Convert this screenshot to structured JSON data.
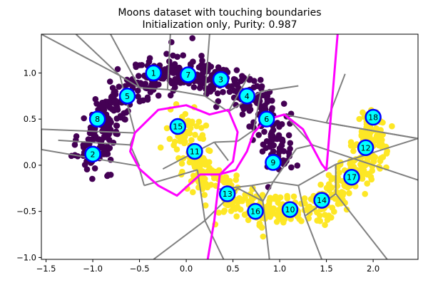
{
  "chart_data": {
    "type": "scatter",
    "title": "Moons dataset with touching boundaries",
    "subtitle": "Initialization only, Purity: 0.987",
    "xlim": [
      -1.55,
      2.48
    ],
    "ylim": [
      -1.02,
      1.42
    ],
    "xticks": [
      -1.5,
      -1.0,
      -0.5,
      0.0,
      0.5,
      1.0,
      1.5,
      2.0
    ],
    "yticks": [
      -1.0,
      -0.5,
      0.0,
      0.5,
      1.0
    ],
    "xtick_labels": [
      "−1.5",
      "−1.0",
      "−0.5",
      "0.0",
      "0.5",
      "1.0",
      "1.5",
      "2.0"
    ],
    "ytick_labels": [
      "−1.0",
      "−0.5",
      "0.0",
      "0.5",
      "1.0"
    ],
    "grid": false,
    "class_colors": {
      "class_0": "#440154",
      "class_1": "#fde725"
    },
    "node_fill": "#00ffff",
    "node_edge": "#0000ff",
    "voronoi_color": "#808080",
    "class_boundary_color": "#ff00ff",
    "nodes": [
      {
        "label": "1",
        "x": -0.35,
        "y": 1.0
      },
      {
        "label": "2",
        "x": -1.0,
        "y": 0.12
      },
      {
        "label": "3",
        "x": 0.37,
        "y": 0.93
      },
      {
        "label": "4",
        "x": 0.65,
        "y": 0.75
      },
      {
        "label": "5",
        "x": -0.63,
        "y": 0.75
      },
      {
        "label": "6",
        "x": 0.86,
        "y": 0.5
      },
      {
        "label": "7",
        "x": 0.02,
        "y": 0.98
      },
      {
        "label": "8",
        "x": -0.95,
        "y": 0.5
      },
      {
        "label": "9",
        "x": 0.93,
        "y": 0.03
      },
      {
        "label": "10",
        "x": 1.11,
        "y": -0.48
      },
      {
        "label": "11",
        "x": 0.09,
        "y": 0.15
      },
      {
        "label": "12",
        "x": 1.92,
        "y": 0.19
      },
      {
        "label": "13",
        "x": 0.44,
        "y": -0.31
      },
      {
        "label": "14",
        "x": 1.45,
        "y": -0.38
      },
      {
        "label": "15",
        "x": -0.09,
        "y": 0.42
      },
      {
        "label": "16",
        "x": 0.74,
        "y": -0.5
      },
      {
        "label": "17",
        "x": 1.77,
        "y": -0.13
      },
      {
        "label": "18",
        "x": 2.0,
        "y": 0.52
      }
    ],
    "class_boundary": [
      [
        0.23,
        -1.02
      ],
      [
        0.3,
        -0.6
      ],
      [
        0.34,
        -0.26
      ],
      [
        0.36,
        -0.1
      ],
      [
        0.5,
        0.04
      ],
      [
        0.55,
        0.36
      ],
      [
        0.45,
        0.6
      ],
      [
        0.25,
        0.55
      ],
      [
        0.0,
        0.65
      ],
      [
        -0.3,
        0.6
      ],
      [
        -0.55,
        0.35
      ],
      [
        -0.6,
        0.15
      ],
      [
        -0.5,
        -0.04
      ],
      [
        -0.3,
        -0.22
      ],
      [
        -0.1,
        -0.33
      ],
      [
        0.15,
        -0.1
      ],
      [
        0.35,
        -0.1
      ],
      [
        0.53,
        -0.05
      ],
      [
        0.65,
        0.15
      ],
      [
        0.72,
        0.35
      ],
      [
        0.85,
        0.49
      ],
      [
        1.05,
        0.55
      ],
      [
        1.25,
        0.39
      ],
      [
        1.45,
        0.01
      ],
      [
        1.5,
        -0.05
      ],
      [
        1.6,
        1.18
      ],
      [
        1.62,
        1.42
      ]
    ],
    "voronoi_edges": [
      [
        [
          -1.18,
          1.42
        ],
        [
          -0.71,
          0.97
        ]
      ],
      [
        [
          -0.71,
          0.97
        ],
        [
          -0.5,
          0.84
        ]
      ],
      [
        [
          -0.5,
          0.84
        ],
        [
          -0.2,
          0.82
        ]
      ],
      [
        [
          -0.2,
          0.82
        ],
        [
          0.2,
          0.75
        ]
      ],
      [
        [
          0.2,
          0.75
        ],
        [
          0.45,
          0.58
        ]
      ],
      [
        [
          -0.81,
          1.42
        ],
        [
          -0.5,
          0.84
        ]
      ],
      [
        [
          -0.2,
          0.82
        ],
        [
          -0.17,
          1.42
        ]
      ],
      [
        [
          0.2,
          0.75
        ],
        [
          0.25,
          1.42
        ]
      ],
      [
        [
          0.45,
          0.58
        ],
        [
          0.68,
          0.99
        ]
      ],
      [
        [
          0.45,
          0.58
        ],
        [
          0.8,
          0.8
        ]
      ],
      [
        [
          0.8,
          0.8
        ],
        [
          1.2,
          0.86
        ]
      ],
      [
        [
          0.8,
          0.8
        ],
        [
          0.72,
          0.38
        ]
      ],
      [
        [
          0.72,
          0.38
        ],
        [
          0.55,
          0.26
        ]
      ],
      [
        [
          0.55,
          0.26
        ],
        [
          0.3,
          0.25
        ]
      ],
      [
        [
          0.3,
          0.25
        ],
        [
          -0.25,
          -0.04
        ]
      ],
      [
        [
          0.3,
          0.25
        ],
        [
          0.45,
          0.05
        ]
      ],
      [
        [
          -1.55,
          1.42
        ],
        [
          -0.71,
          0.97
        ]
      ],
      [
        [
          -0.71,
          0.97
        ],
        [
          -0.55,
          0.35
        ]
      ],
      [
        [
          -0.55,
          0.35
        ],
        [
          -0.3,
          0.6
        ]
      ],
      [
        [
          -0.55,
          0.35
        ],
        [
          -1.55,
          0.39
        ]
      ],
      [
        [
          -0.55,
          0.35
        ],
        [
          -0.6,
          0.22
        ]
      ],
      [
        [
          -0.6,
          0.22
        ],
        [
          -1.37,
          0.27
        ]
      ],
      [
        [
          -0.6,
          0.22
        ],
        [
          -0.5,
          -0.01
        ]
      ],
      [
        [
          -0.5,
          -0.01
        ],
        [
          -1.55,
          0.17
        ]
      ],
      [
        [
          1.05,
          0.55
        ],
        [
          1.5,
          0.46
        ]
      ],
      [
        [
          1.5,
          0.46
        ],
        [
          2.48,
          0.29
        ]
      ],
      [
        [
          1.5,
          0.46
        ],
        [
          1.7,
          0.99
        ]
      ],
      [
        [
          1.5,
          0.46
        ],
        [
          2.48,
          0.29
        ]
      ],
      [
        [
          1.35,
          0.22
        ],
        [
          1.05,
          0.55
        ]
      ],
      [
        [
          1.35,
          0.22
        ],
        [
          2.48,
          -0.16
        ]
      ],
      [
        [
          1.35,
          0.22
        ],
        [
          1.18,
          0.18
        ]
      ],
      [
        [
          1.18,
          0.18
        ],
        [
          0.93,
          -0.18
        ]
      ],
      [
        [
          0.93,
          -0.18
        ],
        [
          0.7,
          -0.22
        ]
      ],
      [
        [
          0.7,
          -0.22
        ],
        [
          0.34,
          -0.26
        ]
      ],
      [
        [
          0.7,
          -0.22
        ],
        [
          0.82,
          -0.39
        ]
      ],
      [
        [
          0.82,
          -0.39
        ],
        [
          0.89,
          -1.02
        ]
      ],
      [
        [
          0.82,
          -0.39
        ],
        [
          0.93,
          -0.18
        ]
      ],
      [
        [
          1.2,
          -0.22
        ],
        [
          0.93,
          -0.18
        ]
      ],
      [
        [
          1.2,
          -0.22
        ],
        [
          1.6,
          0.01
        ]
      ],
      [
        [
          1.2,
          -0.22
        ],
        [
          1.27,
          -0.55
        ]
      ],
      [
        [
          1.27,
          -0.55
        ],
        [
          1.45,
          -1.02
        ]
      ],
      [
        [
          1.6,
          0.01
        ],
        [
          2.48,
          0.29
        ]
      ],
      [
        [
          1.6,
          0.01
        ],
        [
          1.6,
          -0.31
        ]
      ],
      [
        [
          1.6,
          -0.31
        ],
        [
          2.15,
          -1.02
        ]
      ],
      [
        [
          1.6,
          -0.31
        ],
        [
          1.27,
          -0.55
        ]
      ],
      [
        [
          0.12,
          -0.05
        ],
        [
          -0.45,
          -0.22
        ]
      ],
      [
        [
          0.12,
          -0.05
        ],
        [
          0.2,
          -0.6
        ]
      ],
      [
        [
          -0.45,
          -0.22
        ],
        [
          -0.5,
          -0.04
        ]
      ],
      [
        [
          0.2,
          -0.6
        ],
        [
          -0.35,
          -1.02
        ]
      ],
      [
        [
          0.2,
          -0.6
        ],
        [
          0.55,
          -0.25
        ]
      ],
      [
        [
          0.2,
          -0.6
        ],
        [
          0.4,
          -1.02
        ]
      ],
      [
        [
          0.55,
          -0.25
        ],
        [
          0.82,
          -0.39
        ]
      ],
      [
        [
          -1.55,
          0.39
        ],
        [
          -1.55,
          0.17
        ]
      ]
    ]
  }
}
